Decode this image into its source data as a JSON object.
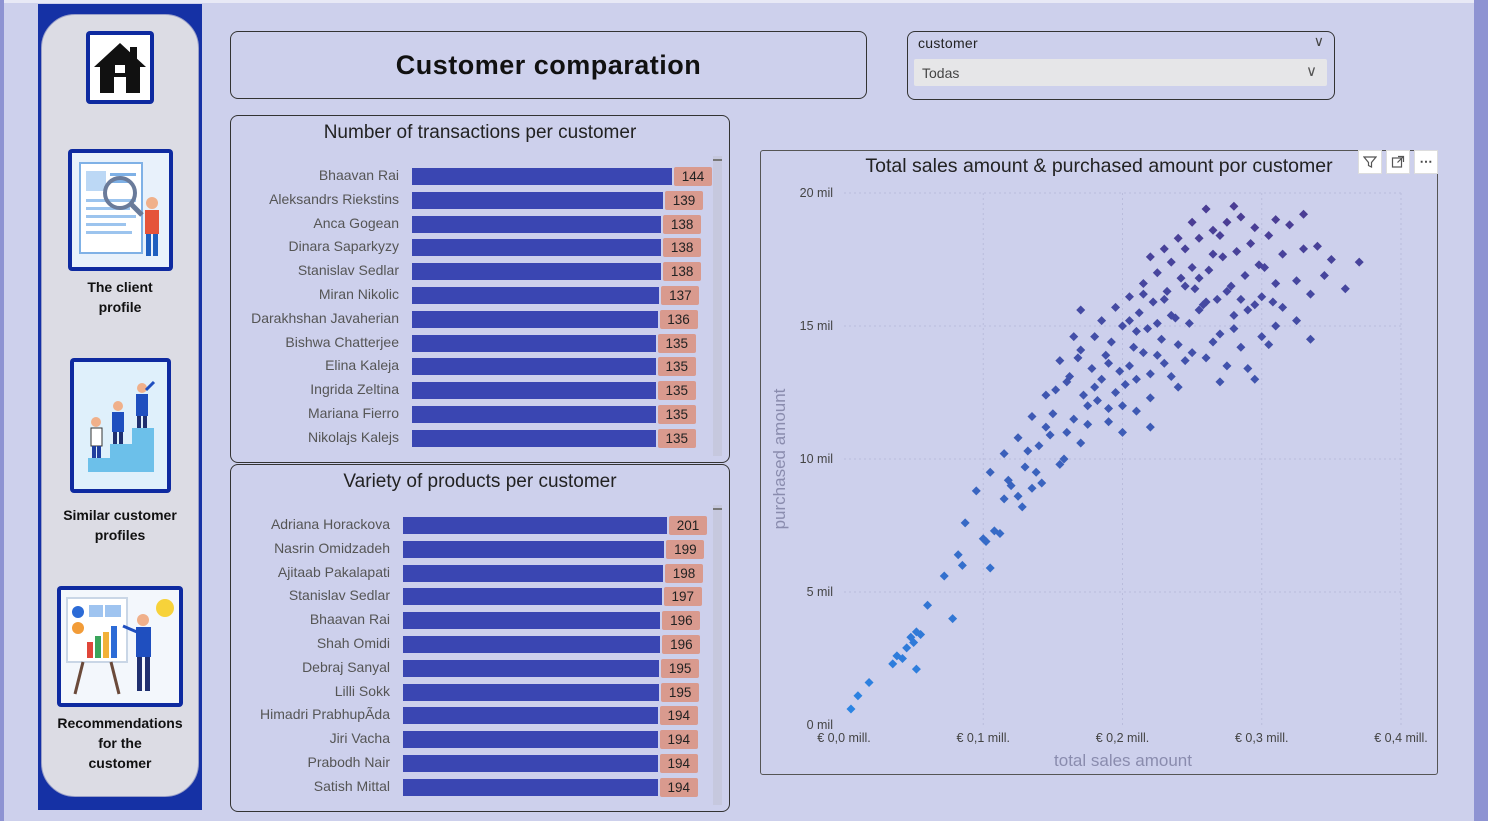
{
  "nav": {
    "items": [
      {
        "label": "The client\nprofile"
      },
      {
        "label": "Similar customer\nprofiles"
      },
      {
        "label": "Recommendations\nfor the\ncustomer"
      }
    ]
  },
  "header": {
    "title": "Customer comparation"
  },
  "slicer": {
    "label": "customer",
    "value": "Todas"
  },
  "transactions": {
    "title": "Number of transactions per customer",
    "rows": [
      {
        "name": "Bhaavan Rai",
        "value": 144
      },
      {
        "name": "Aleksandrs Riekstins",
        "value": 139
      },
      {
        "name": "Anca Gogean",
        "value": 138
      },
      {
        "name": "Dinara Saparkyzy",
        "value": 138
      },
      {
        "name": "Stanislav Sedlar",
        "value": 138
      },
      {
        "name": "Miran Nikolic",
        "value": 137
      },
      {
        "name": "Darakhshan Javaherian",
        "value": 136
      },
      {
        "name": "Bishwa Chatterjee",
        "value": 135
      },
      {
        "name": "Elina Kaleja",
        "value": 135
      },
      {
        "name": "Ingrida Zeltina",
        "value": 135
      },
      {
        "name": "Mariana Fierro",
        "value": 135
      },
      {
        "name": "Nikolajs Kalejs",
        "value": 135
      }
    ]
  },
  "variety": {
    "title": "Variety of products per customer",
    "rows": [
      {
        "name": "Adriana Horackova",
        "value": 201
      },
      {
        "name": "Nasrin Omidzadeh",
        "value": 199
      },
      {
        "name": "Ajitaab Pakalapati",
        "value": 198
      },
      {
        "name": "Stanislav Sedlar",
        "value": 197
      },
      {
        "name": "Bhaavan Rai",
        "value": 196
      },
      {
        "name": "Shah Omidi",
        "value": 196
      },
      {
        "name": "Debraj Sanyal",
        "value": 195
      },
      {
        "name": "Lilli Sokk",
        "value": 195
      },
      {
        "name": "Himadri PrabhupÃda",
        "value": 194
      },
      {
        "name": "Jiri Vacha",
        "value": 194
      },
      {
        "name": "Prabodh Nair",
        "value": 194
      },
      {
        "name": "Satish Mittal",
        "value": 194
      }
    ]
  },
  "chart_data": {
    "type": "scatter",
    "title": "Total sales amount & purchased amount por customer",
    "xlabel": "total sales amount",
    "ylabel": "purchased amount",
    "xlim": [
      0,
      0.4
    ],
    "ylim": [
      0,
      20
    ],
    "x_ticks": [
      "€ 0,0 mill.",
      "€ 0,1 mill.",
      "€ 0,2 mill.",
      "€ 0,3 mill.",
      "€ 0,4 mill."
    ],
    "y_ticks": [
      "0 mil",
      "5 mil",
      "10 mil",
      "15 mil",
      "20 mil"
    ],
    "grid": true,
    "point_color_low": "#2a86e6",
    "point_color_high": "#4a3d94",
    "points": [
      [
        0.005,
        0.6
      ],
      [
        0.01,
        1.1
      ],
      [
        0.018,
        1.6
      ],
      [
        0.035,
        2.3
      ],
      [
        0.038,
        2.6
      ],
      [
        0.042,
        2.5
      ],
      [
        0.045,
        2.9
      ],
      [
        0.048,
        3.3
      ],
      [
        0.05,
        3.1
      ],
      [
        0.052,
        3.5
      ],
      [
        0.055,
        3.4
      ],
      [
        0.052,
        2.1
      ],
      [
        0.06,
        4.5
      ],
      [
        0.072,
        5.6
      ],
      [
        0.078,
        4.0
      ],
      [
        0.082,
        6.4
      ],
      [
        0.085,
        6.0
      ],
      [
        0.087,
        7.6
      ],
      [
        0.1,
        7.0
      ],
      [
        0.102,
        6.9
      ],
      [
        0.105,
        5.9
      ],
      [
        0.108,
        7.3
      ],
      [
        0.112,
        7.2
      ],
      [
        0.115,
        8.5
      ],
      [
        0.118,
        9.2
      ],
      [
        0.12,
        9.0
      ],
      [
        0.125,
        8.6
      ],
      [
        0.128,
        8.2
      ],
      [
        0.13,
        9.7
      ],
      [
        0.132,
        10.3
      ],
      [
        0.135,
        8.9
      ],
      [
        0.138,
        9.5
      ],
      [
        0.14,
        10.5
      ],
      [
        0.142,
        9.1
      ],
      [
        0.145,
        11.2
      ],
      [
        0.148,
        10.9
      ],
      [
        0.15,
        11.7
      ],
      [
        0.152,
        12.6
      ],
      [
        0.155,
        9.8
      ],
      [
        0.158,
        10.0
      ],
      [
        0.16,
        12.9
      ],
      [
        0.162,
        13.1
      ],
      [
        0.165,
        11.5
      ],
      [
        0.168,
        13.8
      ],
      [
        0.17,
        14.1
      ],
      [
        0.172,
        12.4
      ],
      [
        0.175,
        11.3
      ],
      [
        0.178,
        13.4
      ],
      [
        0.18,
        14.6
      ],
      [
        0.182,
        12.2
      ],
      [
        0.185,
        15.2
      ],
      [
        0.188,
        13.9
      ],
      [
        0.19,
        11.9
      ],
      [
        0.192,
        14.4
      ],
      [
        0.195,
        15.7
      ],
      [
        0.198,
        13.3
      ],
      [
        0.2,
        15.0
      ],
      [
        0.202,
        12.8
      ],
      [
        0.205,
        16.1
      ],
      [
        0.208,
        14.2
      ],
      [
        0.21,
        13.0
      ],
      [
        0.212,
        15.5
      ],
      [
        0.215,
        16.6
      ],
      [
        0.218,
        14.9
      ],
      [
        0.22,
        12.3
      ],
      [
        0.222,
        15.9
      ],
      [
        0.225,
        17.0
      ],
      [
        0.228,
        14.5
      ],
      [
        0.23,
        13.6
      ],
      [
        0.232,
        16.3
      ],
      [
        0.235,
        17.4
      ],
      [
        0.238,
        15.3
      ],
      [
        0.24,
        12.7
      ],
      [
        0.242,
        16.8
      ],
      [
        0.245,
        17.9
      ],
      [
        0.248,
        15.1
      ],
      [
        0.25,
        14.0
      ],
      [
        0.252,
        16.4
      ],
      [
        0.255,
        18.3
      ],
      [
        0.258,
        15.8
      ],
      [
        0.26,
        13.8
      ],
      [
        0.262,
        17.1
      ],
      [
        0.265,
        18.6
      ],
      [
        0.268,
        16.0
      ],
      [
        0.27,
        14.7
      ],
      [
        0.272,
        17.6
      ],
      [
        0.275,
        18.9
      ],
      [
        0.278,
        16.5
      ],
      [
        0.28,
        15.4
      ],
      [
        0.282,
        17.8
      ],
      [
        0.285,
        19.1
      ],
      [
        0.288,
        16.9
      ],
      [
        0.29,
        15.6
      ],
      [
        0.292,
        18.1
      ],
      [
        0.295,
        18.7
      ],
      [
        0.298,
        17.3
      ],
      [
        0.3,
        16.1
      ],
      [
        0.302,
        17.2
      ],
      [
        0.305,
        18.4
      ],
      [
        0.308,
        15.9
      ],
      [
        0.31,
        16.6
      ],
      [
        0.315,
        17.7
      ],
      [
        0.32,
        18.8
      ],
      [
        0.325,
        16.7
      ],
      [
        0.33,
        17.9
      ],
      [
        0.335,
        16.2
      ],
      [
        0.34,
        18.0
      ],
      [
        0.345,
        16.9
      ],
      [
        0.35,
        17.5
      ],
      [
        0.36,
        16.4
      ],
      [
        0.37,
        17.4
      ],
      [
        0.18,
        12.7
      ],
      [
        0.19,
        13.6
      ],
      [
        0.2,
        12.0
      ],
      [
        0.21,
        14.8
      ],
      [
        0.22,
        13.2
      ],
      [
        0.23,
        16.0
      ],
      [
        0.24,
        14.3
      ],
      [
        0.25,
        17.2
      ],
      [
        0.26,
        15.9
      ],
      [
        0.27,
        12.9
      ],
      [
        0.28,
        14.9
      ],
      [
        0.29,
        13.4
      ],
      [
        0.3,
        14.6
      ],
      [
        0.31,
        15.0
      ],
      [
        0.16,
        11.0
      ],
      [
        0.17,
        10.6
      ],
      [
        0.175,
        12.0
      ],
      [
        0.185,
        13.0
      ],
      [
        0.195,
        12.5
      ],
      [
        0.205,
        13.5
      ],
      [
        0.215,
        14.0
      ],
      [
        0.225,
        13.9
      ],
      [
        0.235,
        15.4
      ],
      [
        0.245,
        16.5
      ],
      [
        0.255,
        16.8
      ],
      [
        0.265,
        17.7
      ],
      [
        0.275,
        16.3
      ],
      [
        0.285,
        16.0
      ],
      [
        0.295,
        15.8
      ],
      [
        0.305,
        14.3
      ],
      [
        0.315,
        15.7
      ],
      [
        0.325,
        15.2
      ],
      [
        0.335,
        14.5
      ],
      [
        0.205,
        15.2
      ],
      [
        0.215,
        16.2
      ],
      [
        0.225,
        15.1
      ],
      [
        0.235,
        13.1
      ],
      [
        0.245,
        13.7
      ],
      [
        0.255,
        15.6
      ],
      [
        0.265,
        14.4
      ],
      [
        0.275,
        13.5
      ],
      [
        0.285,
        14.2
      ],
      [
        0.295,
        13.0
      ],
      [
        0.19,
        11.4
      ],
      [
        0.2,
        11.0
      ],
      [
        0.21,
        11.8
      ],
      [
        0.22,
        11.2
      ],
      [
        0.17,
        15.6
      ],
      [
        0.165,
        14.6
      ],
      [
        0.155,
        13.7
      ],
      [
        0.145,
        12.4
      ],
      [
        0.135,
        11.6
      ],
      [
        0.125,
        10.8
      ],
      [
        0.115,
        10.2
      ],
      [
        0.105,
        9.5
      ],
      [
        0.095,
        8.8
      ],
      [
        0.24,
        18.3
      ],
      [
        0.25,
        18.9
      ],
      [
        0.26,
        19.4
      ],
      [
        0.27,
        18.4
      ],
      [
        0.28,
        19.5
      ],
      [
        0.31,
        19.0
      ],
      [
        0.33,
        19.2
      ],
      [
        0.23,
        17.9
      ],
      [
        0.22,
        17.6
      ]
    ]
  }
}
